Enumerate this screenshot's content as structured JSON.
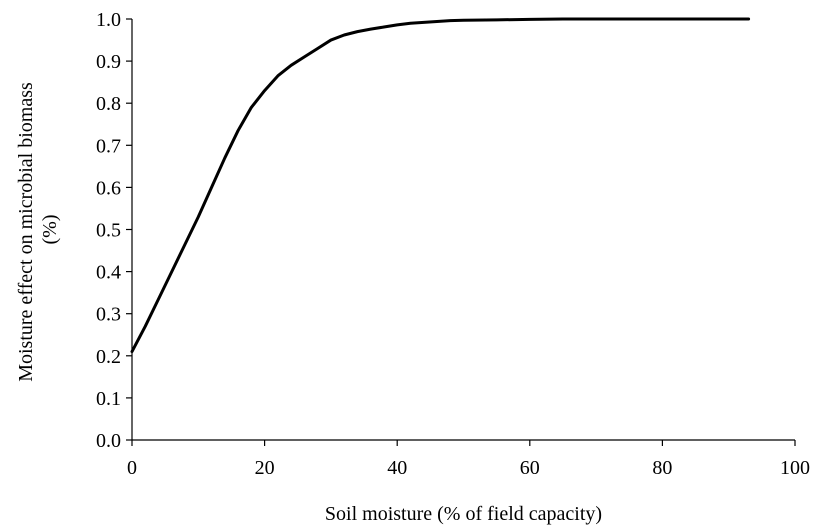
{
  "chart_data": {
    "type": "line",
    "title": "",
    "xlabel": "Soil moisture (% of field capacity)",
    "ylabel_lines": [
      "Moisture effect on microbial biomass",
      "(%)"
    ],
    "xlim": [
      0,
      100
    ],
    "ylim": [
      0,
      1.0
    ],
    "xticks": [
      "0",
      "20",
      "40",
      "60",
      "80",
      "100"
    ],
    "xtick_values": [
      0,
      20,
      40,
      60,
      80,
      100
    ],
    "yticks": [
      "0.0",
      "0.1",
      "0.2",
      "0.3",
      "0.4",
      "0.5",
      "0.6",
      "0.7",
      "0.8",
      "0.9",
      "1.0"
    ],
    "ytick_values": [
      0,
      0.1,
      0.2,
      0.3,
      0.4,
      0.5,
      0.6,
      0.7,
      0.8,
      0.9,
      1.0
    ],
    "grid": false,
    "legend": "none",
    "line_color": "#000000",
    "series": [
      {
        "x": [
          0,
          2,
          4,
          6,
          8,
          10,
          12,
          14,
          16,
          18,
          20,
          22,
          24,
          26,
          28,
          30,
          32,
          34,
          36,
          38,
          40,
          42,
          44,
          46,
          48,
          50,
          55,
          60,
          65,
          70,
          75,
          80,
          85,
          90,
          93
        ],
        "y": [
          0.21,
          0.27,
          0.335,
          0.4,
          0.465,
          0.53,
          0.6,
          0.67,
          0.735,
          0.79,
          0.83,
          0.865,
          0.89,
          0.91,
          0.93,
          0.95,
          0.962,
          0.97,
          0.976,
          0.981,
          0.986,
          0.99,
          0.992,
          0.994,
          0.996,
          0.997,
          0.998,
          0.999,
          1.0,
          1.0,
          1.0,
          1.0,
          1.0,
          1.0,
          1.0
        ]
      }
    ]
  }
}
